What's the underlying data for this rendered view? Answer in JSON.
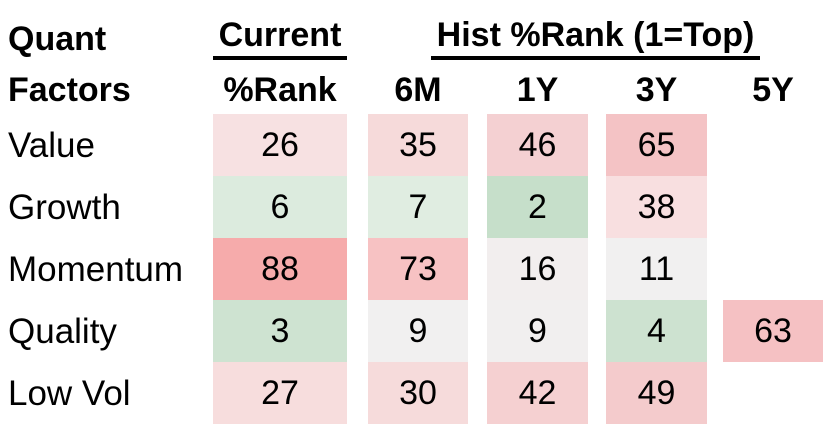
{
  "corner": {
    "line1": "Quant",
    "line2": "Factors"
  },
  "header": {
    "current_group_label": "Current",
    "hist_group_label": "Hist %Rank (1=Top)",
    "sub": [
      "%Rank",
      "6M",
      "1Y",
      "3Y",
      "5Y"
    ]
  },
  "table": {
    "rows": [
      {
        "label": "Value",
        "cells": [
          {
            "value": "26",
            "bg": "#f7e1e2"
          },
          {
            "value": "35",
            "bg": "#f6dada"
          },
          {
            "value": "46",
            "bg": "#f4d0d2"
          },
          {
            "value": "65",
            "bg": "#f4c3c5"
          },
          null
        ]
      },
      {
        "label": "Growth",
        "cells": [
          {
            "value": "6",
            "bg": "#dcebde"
          },
          {
            "value": "7",
            "bg": "#e0ede1"
          },
          {
            "value": "2",
            "bg": "#c6dfca"
          },
          {
            "value": "38",
            "bg": "#f8dfe0"
          },
          null
        ]
      },
      {
        "label": "Momentum",
        "cells": [
          {
            "value": "88",
            "bg": "#f6abab"
          },
          {
            "value": "73",
            "bg": "#f7c2c3"
          },
          {
            "value": "16",
            "bg": "#f2eeee"
          },
          {
            "value": "11",
            "bg": "#f1f0f0"
          },
          null
        ]
      },
      {
        "label": "Quality",
        "cells": [
          {
            "value": "3",
            "bg": "#cee3d1"
          },
          {
            "value": "9",
            "bg": "#f1f0f0"
          },
          {
            "value": "9",
            "bg": "#f1efef"
          },
          {
            "value": "4",
            "bg": "#cde2d0"
          },
          {
            "value": "63",
            "bg": "#f5c1c3"
          }
        ]
      },
      {
        "label": "Low Vol",
        "cells": [
          {
            "value": "27",
            "bg": "#f7dddd"
          },
          {
            "value": "30",
            "bg": "#f6dbdb"
          },
          {
            "value": "42",
            "bg": "#f5d0d1"
          },
          {
            "value": "49",
            "bg": "#f4cbcc"
          },
          null
        ]
      }
    ]
  },
  "colors": {
    "text": "#000000",
    "background": "#ffffff",
    "underline": "#000000",
    "strong_red": "#f6abab",
    "strong_green": "#c6dfca",
    "neutral": "#f1f0f0"
  },
  "chart_data": {
    "type": "heatmap",
    "title": "Quant Factors — Current %Rank and Hist %Rank (1=Top)",
    "rows": [
      "Value",
      "Growth",
      "Momentum",
      "Quality",
      "Low Vol"
    ],
    "columns": [
      "Current %Rank",
      "6M",
      "1Y",
      "3Y",
      "5Y"
    ],
    "values": [
      [
        26,
        35,
        46,
        65,
        null
      ],
      [
        6,
        7,
        2,
        38,
        null
      ],
      [
        88,
        73,
        16,
        11,
        null
      ],
      [
        3,
        9,
        9,
        4,
        63
      ],
      [
        27,
        30,
        42,
        49,
        null
      ]
    ],
    "scale_note": "1=Top",
    "value_range": [
      1,
      100
    ],
    "color_mapping": "low ranks shaded green, ~10-16 near-white, high ranks shaded red",
    "legend": "none",
    "grid": "off"
  }
}
